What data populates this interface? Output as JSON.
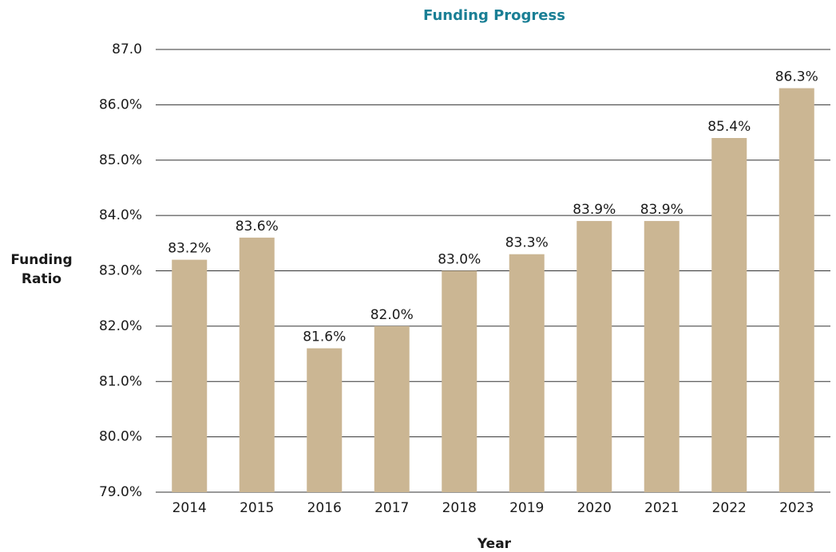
{
  "chart_data": {
    "type": "bar",
    "title": "Funding Progress",
    "x_label": "Year",
    "y_label": "Funding Ratio",
    "categories": [
      "2014",
      "2015",
      "2016",
      "2017",
      "2018",
      "2019",
      "2020",
      "2021",
      "2022",
      "2023"
    ],
    "values": [
      83.2,
      83.6,
      81.6,
      82.0,
      83.0,
      83.3,
      83.9,
      83.9,
      85.4,
      86.3
    ],
    "value_labels": [
      "83.2%",
      "83.6%",
      "81.6%",
      "82.0%",
      "83.0%",
      "83.3%",
      "83.9%",
      "83.9%",
      "85.4%",
      "86.3%"
    ],
    "color": "#cbb693",
    "ylim": [
      79,
      87
    ],
    "yticks": [
      {
        "value": 79,
        "label": "79.0%"
      },
      {
        "value": 80,
        "label": "80.0%"
      },
      {
        "value": 81,
        "label": "81.0%"
      },
      {
        "value": 82,
        "label": "82.0%"
      },
      {
        "value": 83,
        "label": "83.0%"
      },
      {
        "value": 84,
        "label": "84.0%"
      },
      {
        "value": 85,
        "label": "85.0%"
      },
      {
        "value": 86,
        "label": "86.0%"
      },
      {
        "value": 87,
        "label": "87.0"
      }
    ],
    "grid": true
  }
}
